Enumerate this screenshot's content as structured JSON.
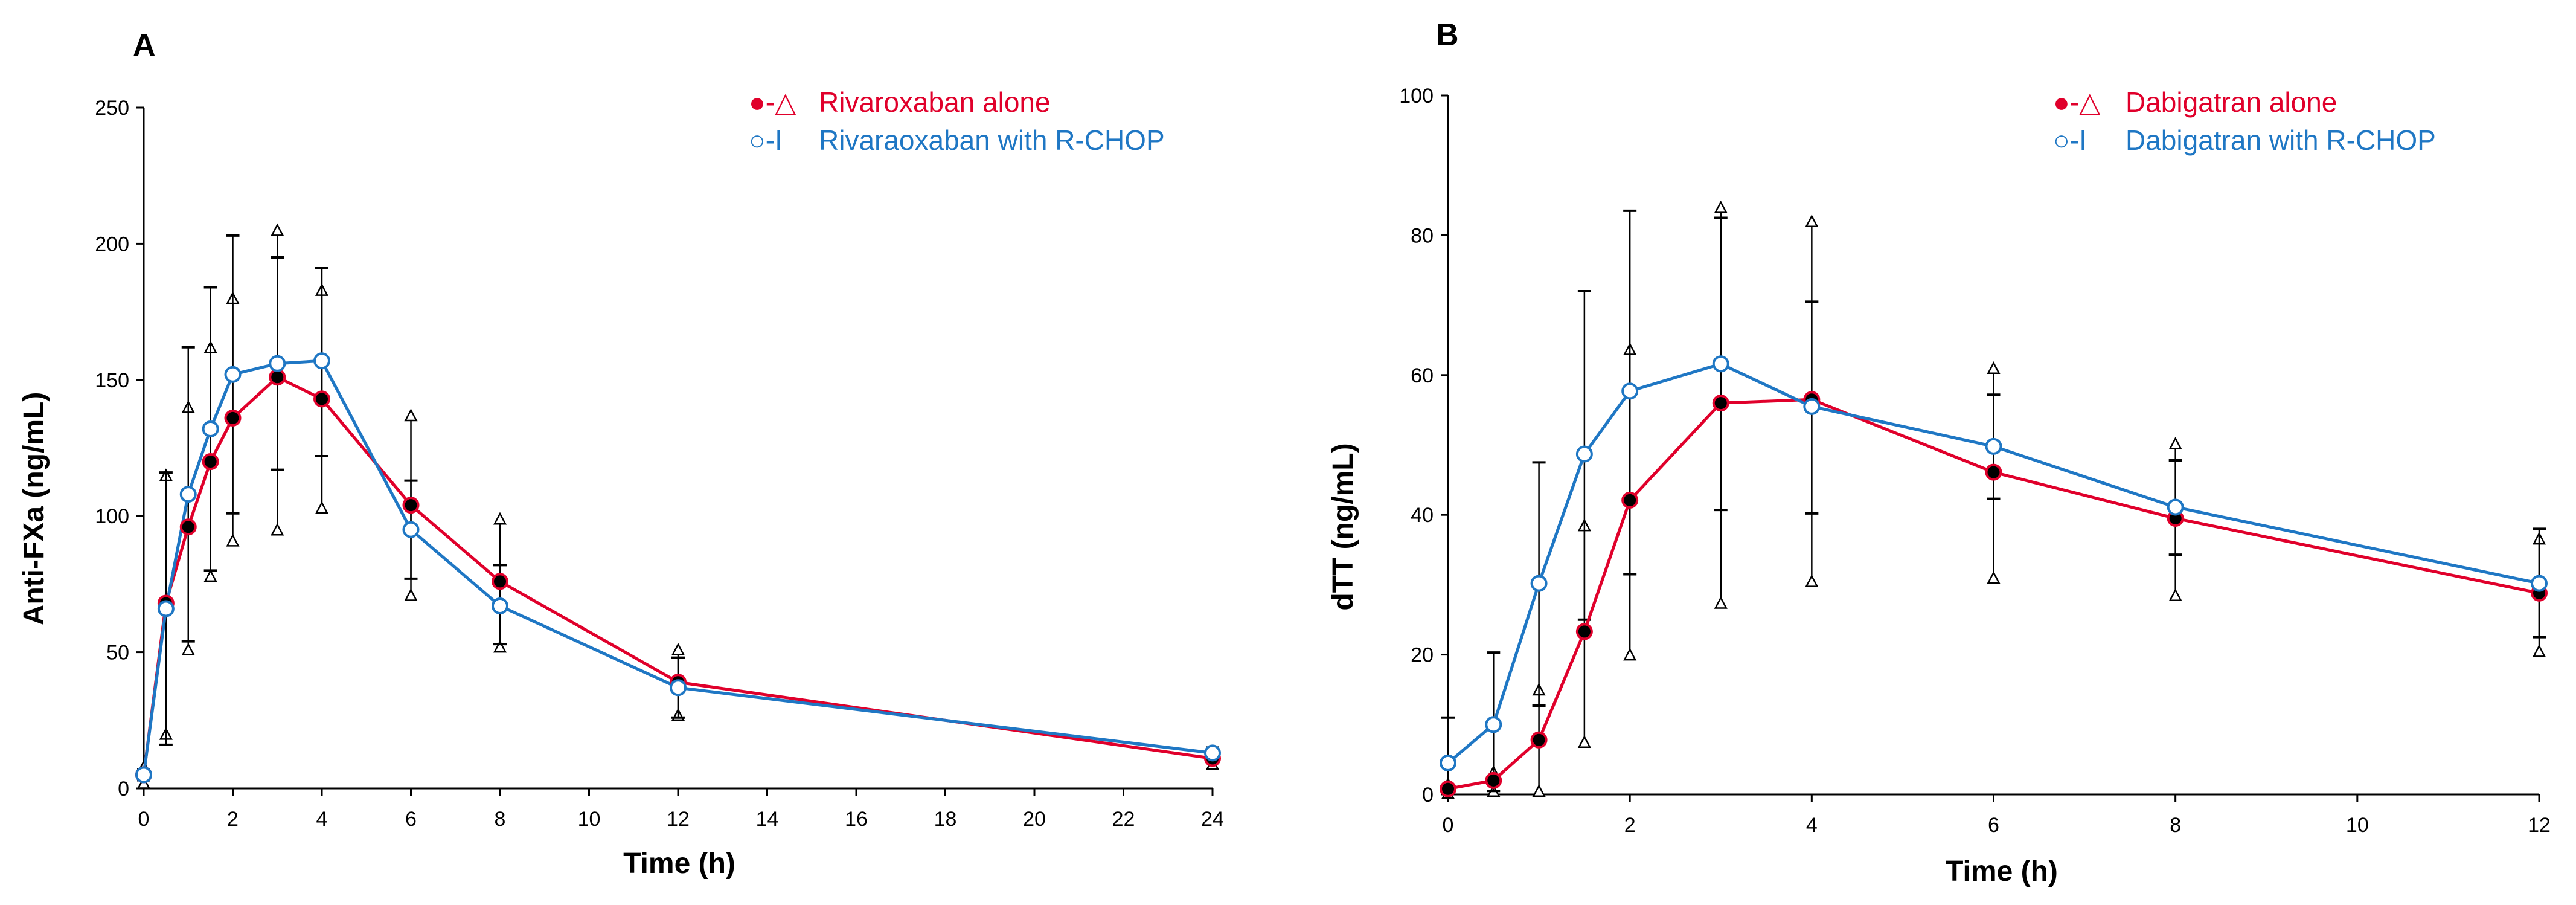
{
  "chart_data": [
    {
      "type": "line",
      "panel_label": "A",
      "xlabel": "Time (h)",
      "ylabel": "Anti-FXa (ng/mL)",
      "xlim": [
        0,
        24
      ],
      "ylim": [
        0,
        250
      ],
      "x_ticks": [
        0,
        2,
        4,
        6,
        8,
        10,
        12,
        14,
        16,
        18,
        20,
        22,
        24
      ],
      "y_ticks": [
        0,
        50,
        100,
        150,
        200,
        250
      ],
      "grid": false,
      "legend_position": "top-right",
      "series": [
        {
          "name": "Rivaroxaban alone",
          "legend_marker": "●-△",
          "color": "#e0002b",
          "marker_fill": "#000000",
          "x": [
            0,
            0.5,
            1,
            1.5,
            2,
            3,
            4,
            6,
            8,
            12,
            24
          ],
          "values": [
            5,
            68,
            96,
            120,
            136,
            151,
            143,
            104,
            76,
            39,
            11
          ],
          "error_upper": [
            8,
            115,
            140,
            162,
            180,
            205,
            183,
            137,
            99,
            51,
            13
          ],
          "error_lower": [
            2,
            20,
            51,
            78,
            91,
            95,
            103,
            71,
            52,
            27,
            9
          ]
        },
        {
          "name": "Rivaraoxaban with R-CHOP",
          "legend_marker": "○-I",
          "color": "#1f77c4",
          "marker_fill": "#ffffff",
          "x": [
            0,
            0.5,
            1,
            1.5,
            2,
            3,
            4,
            6,
            8,
            12,
            24
          ],
          "values": [
            5,
            66,
            108,
            132,
            152,
            156,
            157,
            95,
            67,
            37,
            13
          ],
          "error_upper": [
            7,
            116,
            162,
            184,
            203,
            195,
            191,
            113,
            82,
            48,
            15
          ],
          "error_lower": [
            3,
            16,
            54,
            80,
            101,
            117,
            122,
            77,
            53,
            26,
            10
          ]
        }
      ]
    },
    {
      "type": "line",
      "panel_label": "B",
      "xlabel": "Time (h)",
      "ylabel": "dTT (ng/mL)",
      "xlim": [
        0,
        12
      ],
      "ylim": [
        0,
        100
      ],
      "x_ticks": [
        0,
        2,
        4,
        6,
        8,
        10,
        12
      ],
      "y_ticks": [
        0,
        20,
        40,
        60,
        80,
        100
      ],
      "grid": false,
      "legend_position": "top-right",
      "series": [
        {
          "name": "Dabigatran alone",
          "legend_marker": "●-△",
          "color": "#e0002b",
          "marker_fill": "#000000",
          "x": [
            0,
            0.5,
            1,
            1.5,
            2,
            3,
            4,
            6,
            8,
            12
          ],
          "values": [
            0.8,
            2,
            7.8,
            23.3,
            42.1,
            56,
            56.5,
            46.1,
            39.5,
            28.8
          ],
          "error_upper": [
            1.5,
            3.2,
            15,
            38.5,
            63.7,
            84,
            82,
            61,
            50.2,
            36.6
          ],
          "error_lower": [
            0.2,
            0.5,
            0.5,
            7.5,
            20,
            27.4,
            30.5,
            31,
            28.5,
            20.5
          ]
        },
        {
          "name": "Dabigatran with R-CHOP",
          "legend_marker": "○-I",
          "color": "#1f77c4",
          "marker_fill": "#ffffff",
          "x": [
            0,
            0.5,
            1,
            1.5,
            2,
            3,
            4,
            6,
            8,
            12
          ],
          "values": [
            4.5,
            10,
            30.2,
            48.7,
            57.7,
            61.6,
            55.5,
            49.8,
            41.1,
            30.2
          ],
          "error_upper": [
            11,
            20.3,
            47.5,
            72,
            83.5,
            82.5,
            70.5,
            57.2,
            47.8,
            38
          ],
          "error_lower": [
            0.5,
            0.5,
            12.7,
            25,
            31.5,
            40.7,
            40.2,
            42.3,
            34.3,
            22.5
          ]
        }
      ]
    }
  ]
}
